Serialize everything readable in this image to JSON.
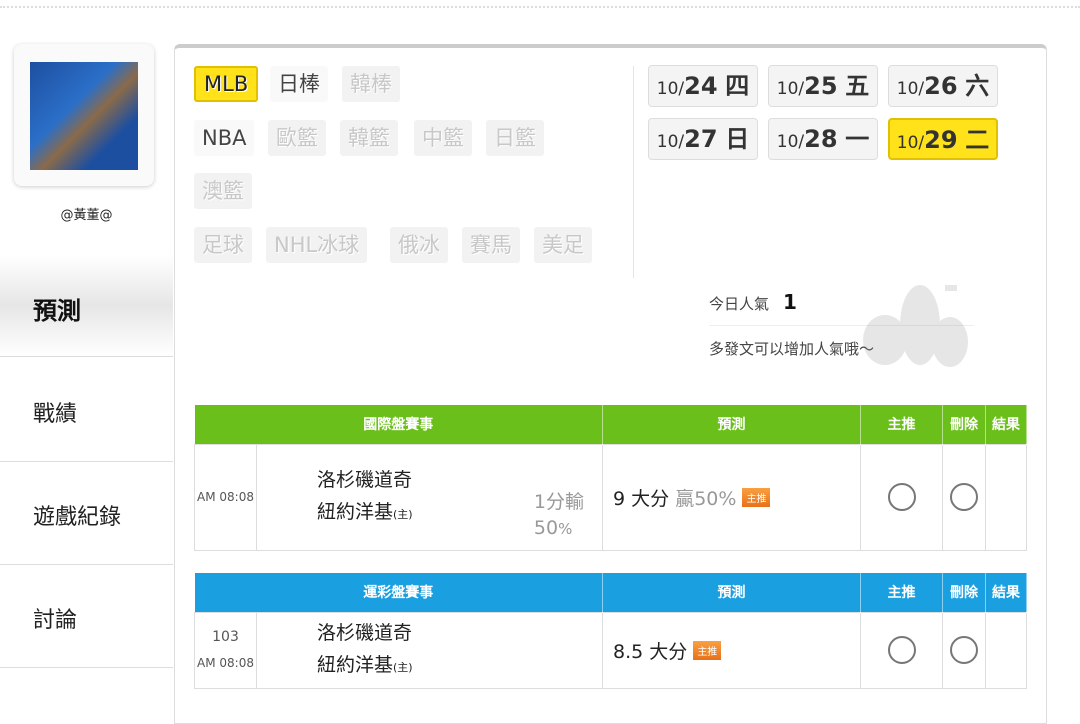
{
  "user": {
    "name": "@黃董@"
  },
  "sidebar": {
    "items": [
      {
        "label": "預測",
        "active": true
      },
      {
        "label": "戰績"
      },
      {
        "label": "遊戲紀錄"
      },
      {
        "label": "討論"
      }
    ]
  },
  "sports": [
    {
      "label": "MLB",
      "state": "selected"
    },
    {
      "label": "日棒",
      "state": "enabled"
    },
    {
      "label": "韓棒",
      "state": "disabled"
    },
    {
      "label": "NBA",
      "state": "enabled"
    },
    {
      "label": "歐籃",
      "state": "disabled"
    },
    {
      "label": "韓籃",
      "state": "disabled"
    },
    {
      "label": "中籃",
      "state": "disabled"
    },
    {
      "label": "日籃",
      "state": "disabled"
    },
    {
      "label": "澳籃",
      "state": "disabled"
    },
    {
      "label": "足球",
      "state": "disabled"
    },
    {
      "label": "NHL冰球",
      "state": "disabled"
    },
    {
      "label": "俄冰",
      "state": "disabled"
    },
    {
      "label": "賽馬",
      "state": "disabled"
    },
    {
      "label": "美足",
      "state": "disabled"
    }
  ],
  "dates": [
    {
      "m": "10/",
      "d": "24",
      "w": "四"
    },
    {
      "m": "10/",
      "d": "25",
      "w": "五"
    },
    {
      "m": "10/",
      "d": "26",
      "w": "六"
    },
    {
      "m": "10/",
      "d": "27",
      "w": "日"
    },
    {
      "m": "10/",
      "d": "28",
      "w": "一"
    },
    {
      "m": "10/",
      "d": "29",
      "w": "二",
      "selected": true
    }
  ],
  "popularity": {
    "label": "今日人氣",
    "value": "1",
    "hint": "多發文可以增加人氣哦～"
  },
  "colors": {
    "green": "#6abf1a",
    "blue": "#1a9fe0",
    "yellow": "#ffe21a"
  },
  "tables": [
    {
      "header": [
        "國際盤賽事",
        "預測",
        "主推",
        "刪除",
        "結果"
      ],
      "row": {
        "no": "",
        "time": "AM 08:08",
        "away": "洛杉磯道奇",
        "home": "紐約洋基",
        "home_tag": "(主)",
        "handicap": "1分輸",
        "handicap_pct": "50",
        "pct_unit": "%",
        "prediction": "9 大分",
        "win_pct": "贏50%",
        "tag": "主推"
      }
    },
    {
      "header": [
        "運彩盤賽事",
        "預測",
        "主推",
        "刪除",
        "結果"
      ],
      "row": {
        "no": "103",
        "time": "AM 08:08",
        "away": "洛杉磯道奇",
        "home": "紐約洋基",
        "home_tag": "(主)",
        "prediction": "8.5 大分",
        "tag": "主推"
      }
    }
  ]
}
